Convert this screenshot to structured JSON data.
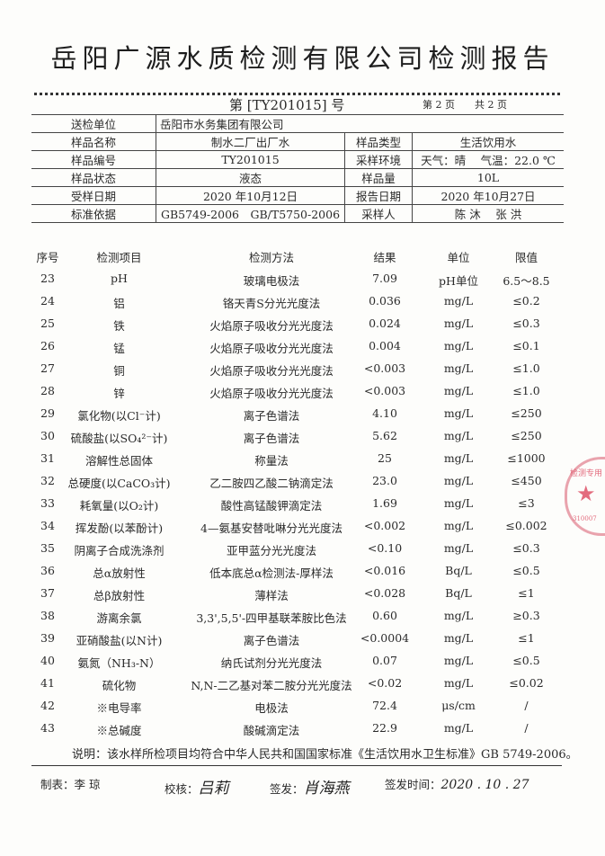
{
  "title": "岳阳广源水质检测有限公司检测报告",
  "doc_number": "第 [TY201015] 号",
  "page": "第 2 页",
  "total_pages": "共 2 页",
  "info": {
    "client_label": "送检单位",
    "client": "岳阳市水务集团有限公司",
    "sample_name_label": "样品名称",
    "sample_name": "制水二厂出厂水",
    "sample_type_label": "样品类型",
    "sample_type": "生活饮用水",
    "sample_no_label": "样品编号",
    "sample_no": "TY201015",
    "env_label": "采样环境",
    "env": "天气：晴　 气温：22.0 ℃",
    "state_label": "样品状态",
    "state": "液态",
    "qty_label": "样品量",
    "qty": "10L",
    "recv_label": "受样日期",
    "recv": "2020 年10月12日",
    "report_label": "报告日期",
    "report": "2020 年10月27日",
    "std_label": "标准依据",
    "std": "GB5749-2006　GB/T5750-2006",
    "sampler_label": "采样人",
    "sampler": "陈 沐　 张 洪"
  },
  "headers": [
    "序号",
    "检测项目",
    "检测方法",
    "结果",
    "单位",
    "限值"
  ],
  "rows": [
    [
      "23",
      "pH",
      "玻璃电极法",
      "7.09",
      "pH单位",
      "6.5～8.5"
    ],
    [
      "24",
      "铝",
      "铬天青S分光光度法",
      "0.036",
      "mg/L",
      "≤0.2"
    ],
    [
      "25",
      "铁",
      "火焰原子吸收分光光度法",
      "0.024",
      "mg/L",
      "≤0.3"
    ],
    [
      "26",
      "锰",
      "火焰原子吸收分光光度法",
      "0.004",
      "mg/L",
      "≤0.1"
    ],
    [
      "27",
      "铜",
      "火焰原子吸收分光光度法",
      "<0.003",
      "mg/L",
      "≤1.0"
    ],
    [
      "28",
      "锌",
      "火焰原子吸收分光光度法",
      "<0.003",
      "mg/L",
      "≤1.0"
    ],
    [
      "29",
      "氯化物(以Cl⁻计)",
      "离子色谱法",
      "4.10",
      "mg/L",
      "≤250"
    ],
    [
      "30",
      "硫酸盐(以SO₄²⁻计)",
      "离子色谱法",
      "5.62",
      "mg/L",
      "≤250"
    ],
    [
      "31",
      "溶解性总固体",
      "称量法",
      "25",
      "mg/L",
      "≤1000"
    ],
    [
      "32",
      "总硬度(以CaCO₃计)",
      "乙二胺四乙酸二钠滴定法",
      "23.0",
      "mg/L",
      "≤450"
    ],
    [
      "33",
      "耗氧量(以O₂计)",
      "酸性高锰酸钾滴定法",
      "1.69",
      "mg/L",
      "≤3"
    ],
    [
      "34",
      "挥发酚(以苯酚计)",
      "4—氨基安替吡啉分光光度法",
      "<0.002",
      "mg/L",
      "≤0.002"
    ],
    [
      "35",
      "阴离子合成洗涤剂",
      "亚甲蓝分光光度法",
      "<0.10",
      "mg/L",
      "≤0.3"
    ],
    [
      "36",
      "总α放射性",
      "低本底总α检测法-厚样法",
      "<0.016",
      "Bq/L",
      "≤0.5"
    ],
    [
      "37",
      "总β放射性",
      "薄样法",
      "<0.028",
      "Bq/L",
      "≤1"
    ],
    [
      "38",
      "游离余氯",
      "3,3',5,5'-四甲基联苯胺比色法",
      "0.60",
      "mg/L",
      "≥0.3"
    ],
    [
      "39",
      "亚硝酸盐(以N计)",
      "离子色谱法",
      "<0.0004",
      "mg/L",
      "≤1"
    ],
    [
      "40",
      "氨氮（NH₃-N）",
      "纳氏试剂分光光度法",
      "0.07",
      "mg/L",
      "≤0.5"
    ],
    [
      "41",
      "硫化物",
      "N,N-二乙基对苯二胺分光光度法",
      "<0.02",
      "mg/L",
      "≤0.02"
    ],
    [
      "42",
      "※电导率",
      "电极法",
      "72.4",
      "μs/cm",
      "/"
    ],
    [
      "43",
      "※总碱度",
      "酸碱滴定法",
      "22.9",
      "mg/L",
      "/"
    ]
  ],
  "note": "说明：该水样所检项目均符合中华人民共和国国家标准《生活饮用水卫生标准》GB 5749-2006。",
  "footer": {
    "prepared_label": "制表：李 琼",
    "checked_label": "校核：",
    "checked_sig": "吕莉",
    "issued_label": "签发：",
    "issued_sig": "肖海燕",
    "issue_time_label": "签发时间：",
    "issue_time": "2020 . 10 . 27"
  },
  "stamp": {
    "text": "检测专用",
    "code": "310007",
    "color": "#e36b7d"
  }
}
